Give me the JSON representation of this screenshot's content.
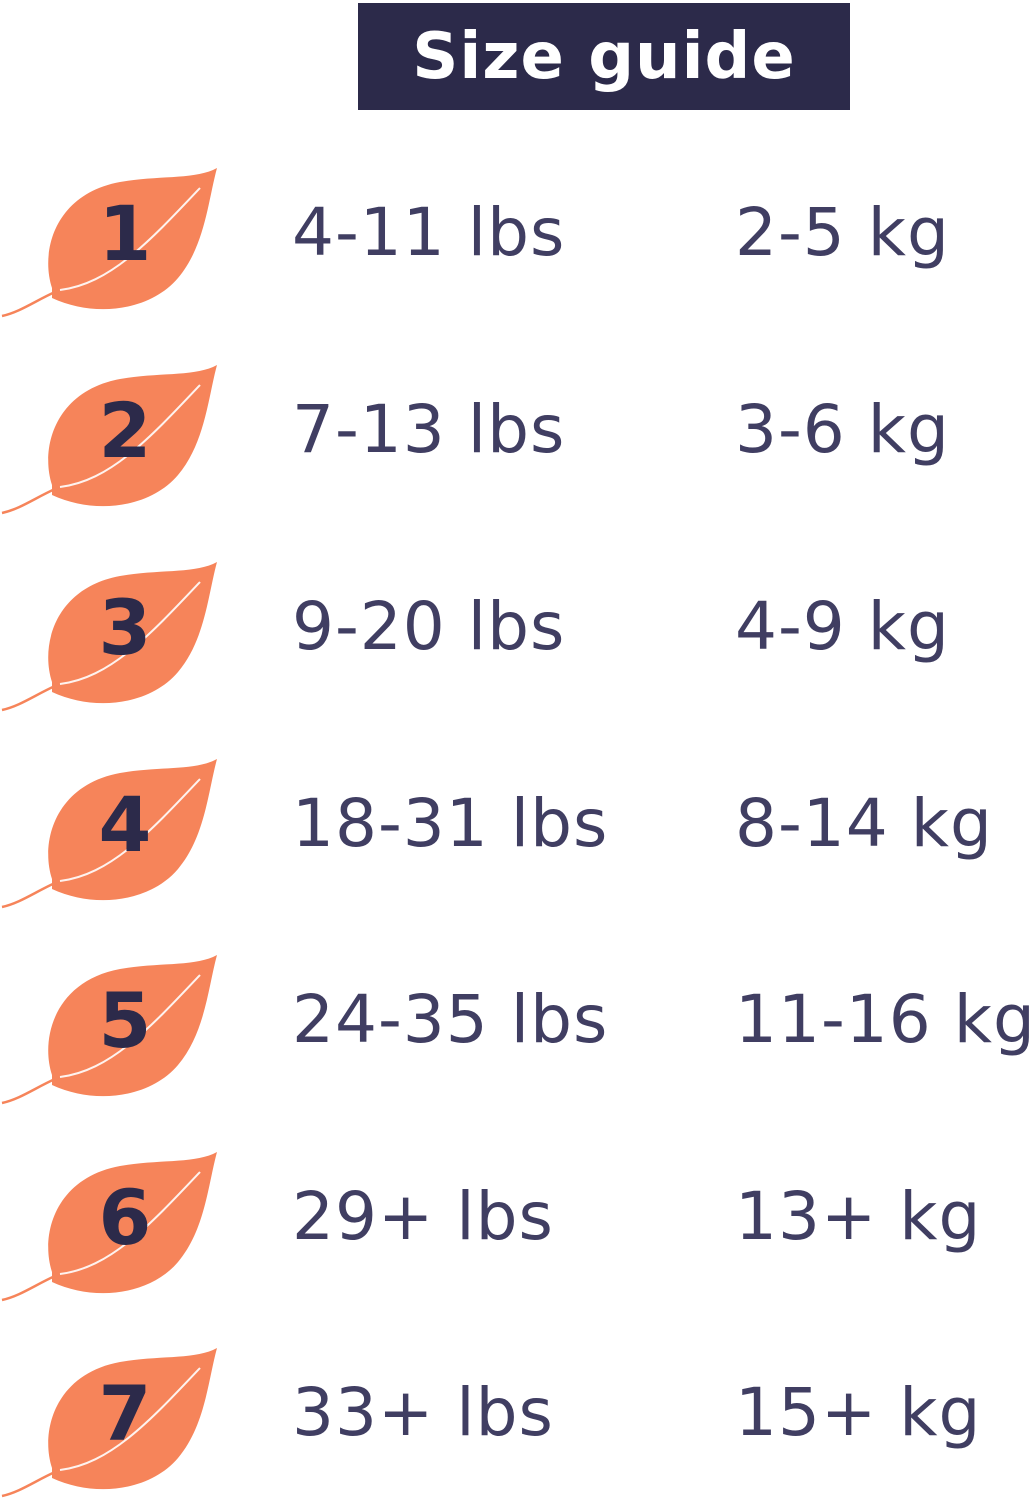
{
  "title": "Size guide",
  "colors": {
    "leaf": "#f6845a",
    "navy": "#2c2a4a",
    "text": "#403e62"
  },
  "icon": "leaf-icon",
  "sizes": [
    {
      "size": "1",
      "lbs": "4-11 lbs",
      "kg": "2-5 kg"
    },
    {
      "size": "2",
      "lbs": "7-13 lbs",
      "kg": "3-6 kg"
    },
    {
      "size": "3",
      "lbs": "9-20 lbs",
      "kg": "4-9 kg"
    },
    {
      "size": "4",
      "lbs": "18-31 lbs",
      "kg": "8-14 kg"
    },
    {
      "size": "5",
      "lbs": "24-35 lbs",
      "kg": "11-16 kg"
    },
    {
      "size": "6",
      "lbs": "29+ lbs",
      "kg": "13+ kg"
    },
    {
      "size": "7",
      "lbs": "33+ lbs",
      "kg": "15+ kg"
    }
  ]
}
